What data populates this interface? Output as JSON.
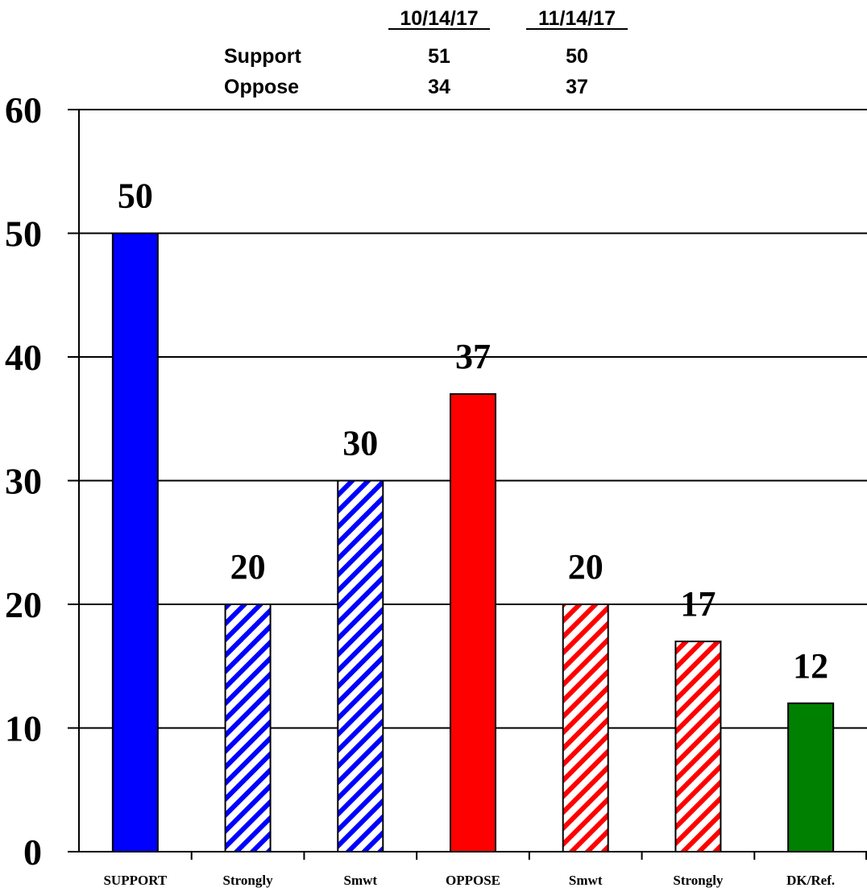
{
  "summary_table": {
    "columns": [
      "10/14/17",
      "11/14/17"
    ],
    "rows": [
      {
        "label": "Support",
        "values": [
          "51",
          "50"
        ]
      },
      {
        "label": "Oppose",
        "values": [
          "34",
          "37"
        ]
      }
    ]
  },
  "chart_data": {
    "type": "bar",
    "categories": [
      "SUPPORT",
      "Strongly",
      "Smwt",
      "OPPOSE",
      "Smwt",
      "Strongly",
      "DK/Ref."
    ],
    "values": [
      50,
      20,
      30,
      37,
      20,
      17,
      12
    ],
    "data_labels": [
      "50",
      "20",
      "30",
      "37",
      "20",
      "17",
      "12"
    ],
    "bar_styles": [
      "solid-blue",
      "hatch-blue",
      "hatch-blue",
      "solid-red",
      "hatch-red",
      "hatch-red",
      "solid-green"
    ],
    "colors": {
      "blue": "#0000ff",
      "red": "#ff0000",
      "green": "#008000",
      "grid": "#000000"
    },
    "ylim": [
      0,
      60
    ],
    "yticks": [
      "0",
      "10",
      "20",
      "30",
      "40",
      "50",
      "60"
    ],
    "grid": true,
    "title": "",
    "xlabel": "",
    "ylabel": ""
  }
}
